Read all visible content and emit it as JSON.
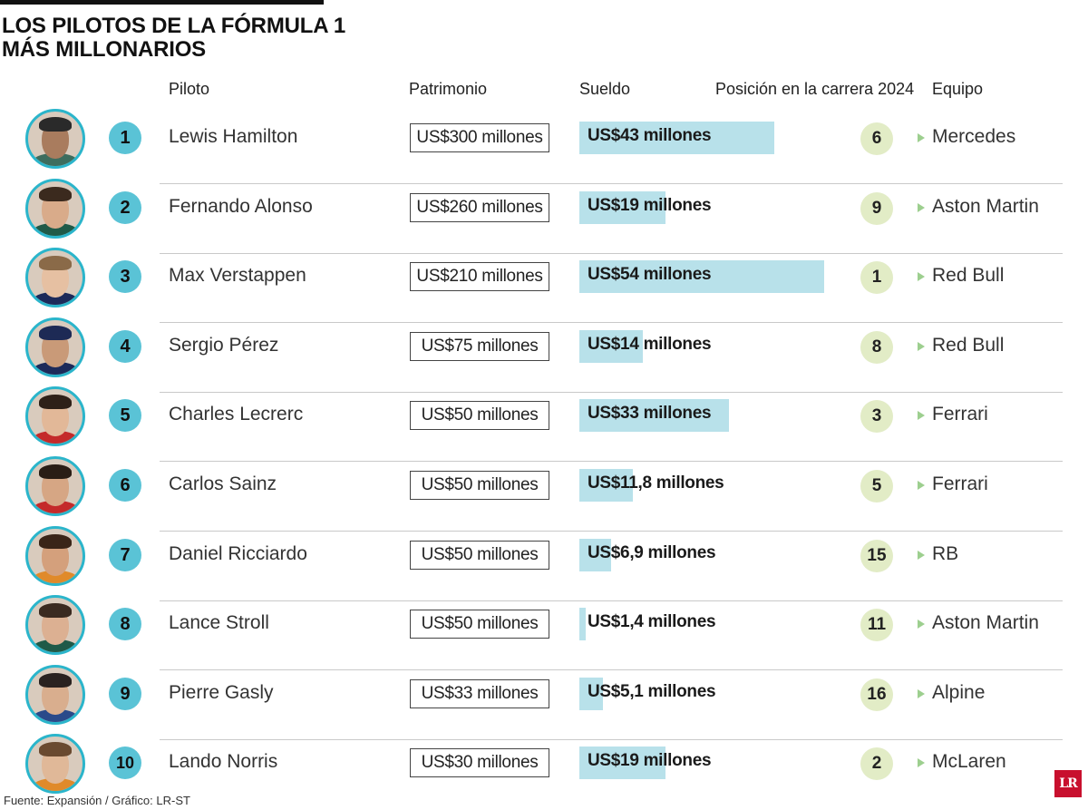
{
  "title_line1": "LOS PILOTOS DE LA FÓRMULA 1",
  "title_line2": "MÁS MILLONARIOS",
  "headers": {
    "piloto": "Piloto",
    "patrimonio": "Patrimonio",
    "sueldo": "Sueldo",
    "posicion": "Posición en la carrera 2024",
    "equipo": "Equipo"
  },
  "source": "Fuente: Expansión / Gráfico: LR-ST",
  "logo_text": "LR",
  "colors": {
    "rank_circle": "#5ac3d6",
    "avatar_ring": "#2bb5cb",
    "salary_bar": "#b8e1ea",
    "position_circle": "#e2ecc6",
    "team_arrow": "#9dcf8f",
    "logo": "#c8102e"
  },
  "chart_data": {
    "type": "table",
    "rows": [
      {
        "rank": "1",
        "name": "Lewis Hamilton",
        "patrimonio": "US$300 millones",
        "sueldo_label": "US$43 millones",
        "sueldo": 43,
        "position": "6",
        "team": "Mercedes",
        "hair": "#2a2a2a",
        "shirt": "#3d6d5e",
        "skin": "#a97c5e"
      },
      {
        "rank": "2",
        "name": "Fernando Alonso",
        "patrimonio": "US$260 millones",
        "sueldo_label": "US$19 millones",
        "sueldo": 19,
        "position": "9",
        "team": "Aston Martin",
        "hair": "#3b2a1e",
        "shirt": "#1f5a48",
        "skin": "#d9ab8a"
      },
      {
        "rank": "3",
        "name": "Max Verstappen",
        "patrimonio": "US$210 millones",
        "sueldo_label": "US$54 millones",
        "sueldo": 54,
        "position": "1",
        "team": "Red Bull",
        "hair": "#8a6a48",
        "shirt": "#1c2a5a",
        "skin": "#e6c0a2"
      },
      {
        "rank": "4",
        "name": "Sergio Pérez",
        "patrimonio": "US$75 millones",
        "sueldo_label": "US$14 millones",
        "sueldo": 14,
        "position": "8",
        "team": "Red Bull",
        "hair": "#1d2a55",
        "shirt": "#1c2a5a",
        "skin": "#c99a78"
      },
      {
        "rank": "5",
        "name": "Charles Lecrerc",
        "patrimonio": "US$50 millones",
        "sueldo_label": "US$33 millones",
        "sueldo": 33,
        "position": "3",
        "team": "Ferrari",
        "hair": "#2e2018",
        "shirt": "#c42a2a",
        "skin": "#e2b898"
      },
      {
        "rank": "6",
        "name": "Carlos Sainz",
        "patrimonio": "US$50 millones",
        "sueldo_label": "US$11,8 millones",
        "sueldo": 11.8,
        "position": "5",
        "team": "Ferrari",
        "hair": "#2a1d15",
        "shirt": "#c42a2a",
        "skin": "#d6a684"
      },
      {
        "rank": "7",
        "name": "Daniel Ricciardo",
        "patrimonio": "US$50 millones",
        "sueldo_label": "US$6,9 millones",
        "sueldo": 6.9,
        "position": "15",
        "team": "RB",
        "hair": "#3a2518",
        "shirt": "#e08a2a",
        "skin": "#d4a07c"
      },
      {
        "rank": "8",
        "name": "Lance Stroll",
        "patrimonio": "US$50 millones",
        "sueldo_label": "US$1,4 millones",
        "sueldo": 1.4,
        "position": "11",
        "team": "Aston Martin",
        "hair": "#3a2a20",
        "shirt": "#1f5a48",
        "skin": "#dcb092"
      },
      {
        "rank": "9",
        "name": "Pierre Gasly",
        "patrimonio": "US$33 millones",
        "sueldo_label": "US$5,1 millones",
        "sueldo": 5.1,
        "position": "16",
        "team": "Alpine",
        "hair": "#2a2220",
        "shirt": "#2a4a8a",
        "skin": "#d9ae8e"
      },
      {
        "rank": "10",
        "name": "Lando Norris",
        "patrimonio": "US$30 millones",
        "sueldo_label": "US$19 millones",
        "sueldo": 19,
        "position": "2",
        "team": "McLaren",
        "hair": "#6a4a30",
        "shirt": "#e08a2a",
        "skin": "#e0b898"
      }
    ],
    "sueldo_scale_max": 54
  }
}
